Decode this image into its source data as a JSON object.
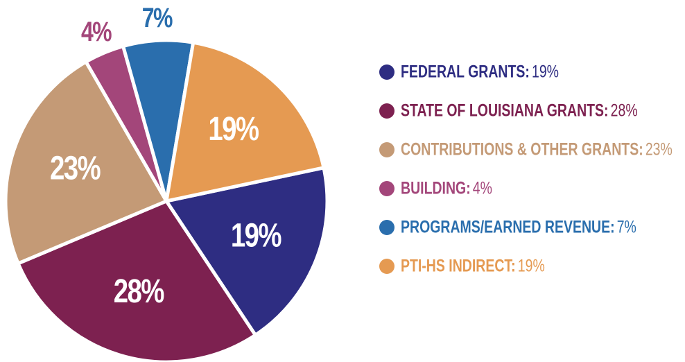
{
  "chart_data": {
    "type": "pie",
    "categories": [
      "FEDERAL GRANTS:",
      "STATE OF LOUISIANA GRANTS:",
      "CONTRIBUTIONS & OTHER GRANTS:",
      "BUILDING:",
      "PROGRAMS/EARNED REVENUE:",
      "PTI-HS INDIRECT:"
    ],
    "values": [
      19,
      28,
      23,
      4,
      7,
      19
    ],
    "value_labels": [
      "19%",
      "28%",
      "23%",
      "4%",
      "7%",
      "19%"
    ],
    "colors": [
      "#2e2d82",
      "#7d2150",
      "#c49a76",
      "#a3467a",
      "#2a6ead",
      "#e59a52"
    ]
  }
}
